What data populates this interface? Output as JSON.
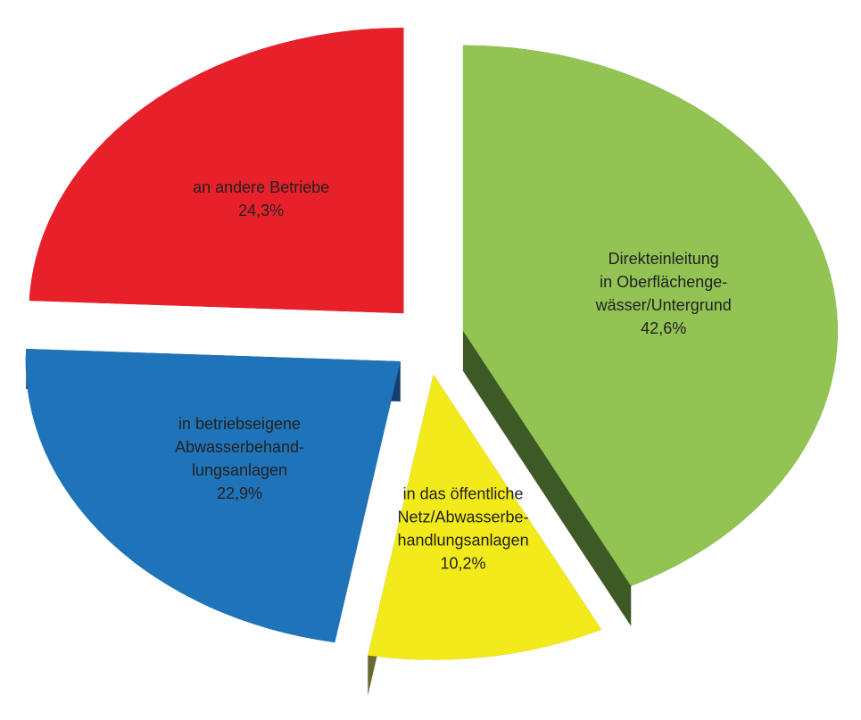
{
  "chart_data": {
    "type": "pie",
    "categories": [
      [
        "Direkteinleitung",
        "in Oberflächenge-",
        "wässer/Untergrund"
      ],
      [
        "in das öffentliche",
        "Netz/Abwasserbe-",
        "handlungsanlagen"
      ],
      [
        "in betriebseigene",
        "Abwasserbehand-",
        "lungsanlagen"
      ],
      [
        "an andere Betriebe"
      ]
    ],
    "values": [
      42.6,
      10.2,
      22.9,
      24.3
    ],
    "value_labels": [
      "42,6%",
      "10,2%",
      "22,9%",
      "24,3%"
    ],
    "colors": [
      "#92c353",
      "#f2ea1a",
      "#1f73b8",
      "#e8202a"
    ],
    "side_colors": [
      "#3d5a26",
      "#6b6a30",
      "#123f6e",
      "#6e0f12"
    ]
  }
}
